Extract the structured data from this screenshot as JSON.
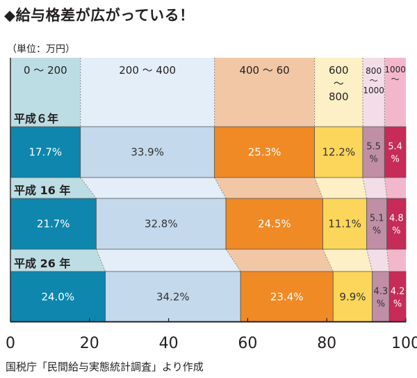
{
  "title": "◆給与格差が広がっている！",
  "unit": "（単位：万円）",
  "source": "国税庁「民間給与実態統計調査」より作成",
  "chart_data": {
    "type": "bar",
    "orientation": "horizontal",
    "stacked": true,
    "xlim": [
      0,
      100
    ],
    "x_ticks": [
      "0",
      "20",
      "40",
      "60",
      "80",
      "100"
    ],
    "income_bands": [
      {
        "lines": [
          "0 ～ 200"
        ]
      },
      {
        "lines": [
          "200 ～ 400"
        ]
      },
      {
        "lines": [
          "400 ～ 60"
        ]
      },
      {
        "lines": [
          "600",
          "～",
          "800"
        ]
      },
      {
        "lines": [
          "800",
          "～",
          "1000"
        ]
      },
      {
        "lines": [
          "1000",
          "～"
        ]
      }
    ],
    "rows": [
      {
        "label": "平成６年",
        "values": [
          17.7,
          33.9,
          25.3,
          12.2,
          5.5,
          5.4
        ],
        "value_labels": [
          [
            "17.7%"
          ],
          [
            "33.9%"
          ],
          [
            "25.3%"
          ],
          [
            "12.2%"
          ],
          [
            "5.5",
            "%"
          ],
          [
            "5.4",
            "%"
          ]
        ]
      },
      {
        "label": "平成 16 年",
        "values": [
          21.7,
          32.8,
          24.5,
          11.1,
          5.1,
          4.8
        ],
        "value_labels": [
          [
            "21.7%"
          ],
          [
            "32.8%"
          ],
          [
            "24.5%"
          ],
          [
            "11.1%"
          ],
          [
            "5.1",
            "%"
          ],
          [
            "4.8",
            "%"
          ]
        ]
      },
      {
        "label": "平成 26 年",
        "values": [
          24.0,
          34.2,
          23.4,
          9.9,
          4.3,
          4.2
        ],
        "value_labels": [
          [
            "24.0%"
          ],
          [
            "34.2%"
          ],
          [
            "23.4%"
          ],
          [
            "9.9%"
          ],
          [
            "4.3",
            "%"
          ],
          [
            "4.2",
            "%"
          ]
        ]
      }
    ],
    "colors": {
      "bar": [
        "#0e86ad",
        "#c4d9ec",
        "#f08a25",
        "#fbd65a",
        "#c08fa6",
        "#c72b57"
      ],
      "band": [
        "#bcdde3",
        "#e4eef8",
        "#f2c7a6",
        "#fdf0c6",
        "#f3dee8",
        "#f3b7cb"
      ],
      "value_text": [
        "#ffffff",
        "#333333",
        "#ffffff",
        "#333333",
        "#333333",
        "#ffffff"
      ]
    }
  }
}
